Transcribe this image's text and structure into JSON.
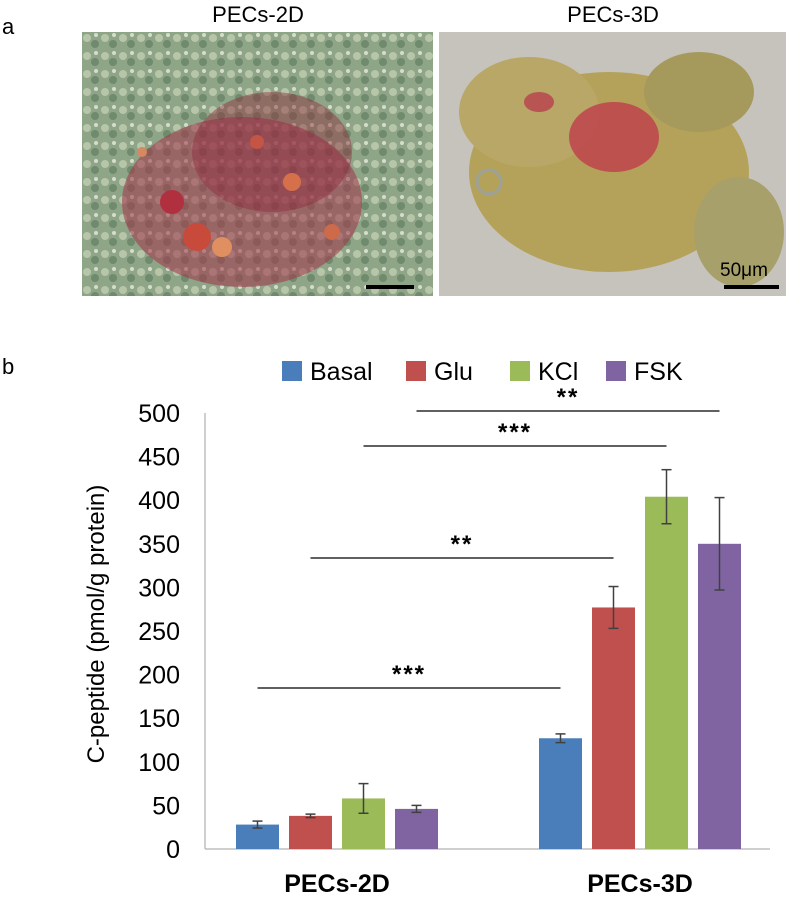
{
  "panel_a": {
    "letter": "a",
    "left_title": "PECs-2D",
    "right_title": "PECs-3D",
    "scale_label": "50μm"
  },
  "panel_b": {
    "letter": "b"
  },
  "colors": {
    "Basal": "#4a7ebb",
    "Glu": "#c0504d",
    "KCl": "#9bbb59",
    "FSK": "#8064a2"
  },
  "chart_data": {
    "type": "bar",
    "categories": [
      "PECs-2D",
      "PECs-3D"
    ],
    "series": [
      {
        "name": "Basal",
        "values": [
          28,
          127
        ],
        "errors": [
          4,
          5
        ]
      },
      {
        "name": "Glu",
        "values": [
          38,
          277
        ],
        "errors": [
          2,
          24
        ]
      },
      {
        "name": "KCl",
        "values": [
          58,
          404
        ],
        "errors": [
          17,
          31
        ]
      },
      {
        "name": "FSK",
        "values": [
          46,
          350
        ],
        "errors": [
          4,
          53
        ]
      }
    ],
    "ylabel": "C-peptide (pmol/g protein)",
    "xlabel": "",
    "ylim": [
      0,
      500
    ],
    "yticks": [
      0,
      50,
      100,
      150,
      200,
      250,
      300,
      350,
      400,
      450,
      500
    ],
    "legend_position": "top",
    "grid": false,
    "significance": [
      {
        "from": [
          "PECs-2D",
          "Basal"
        ],
        "to": [
          "PECs-3D",
          "Basal"
        ],
        "label": "***"
      },
      {
        "from": [
          "PECs-2D",
          "Glu"
        ],
        "to": [
          "PECs-3D",
          "Glu"
        ],
        "label": "**"
      },
      {
        "from": [
          "PECs-2D",
          "KCl"
        ],
        "to": [
          "PECs-3D",
          "KCl"
        ],
        "label": "***"
      },
      {
        "from": [
          "PECs-2D",
          "FSK"
        ],
        "to": [
          "PECs-3D",
          "FSK"
        ],
        "label": "**"
      }
    ]
  }
}
